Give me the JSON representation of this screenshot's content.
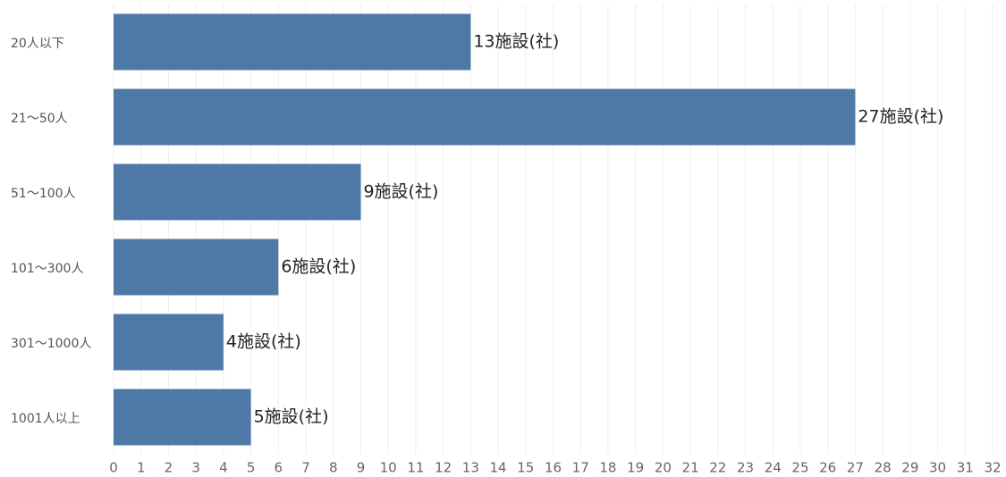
{
  "chart_data": {
    "type": "barh",
    "categories": [
      "20人以下",
      "21～50人",
      "51～100人",
      "101～300人",
      "301～1000人",
      "1001人以上"
    ],
    "values": [
      13,
      27,
      9,
      6,
      4,
      5
    ],
    "value_labels": [
      "13施設(社)",
      "27施設(社)",
      "9施設(社)",
      "6施設(社)",
      "4施設(社)",
      "5施設(社)"
    ],
    "color": "#4e79a7",
    "xlim": [
      0,
      32
    ],
    "xticks": [
      0,
      1,
      2,
      3,
      4,
      5,
      6,
      7,
      8,
      9,
      10,
      11,
      12,
      13,
      14,
      15,
      16,
      17,
      18,
      19,
      20,
      21,
      22,
      23,
      24,
      25,
      26,
      27,
      28,
      29,
      30,
      31,
      32
    ],
    "grid": true
  }
}
